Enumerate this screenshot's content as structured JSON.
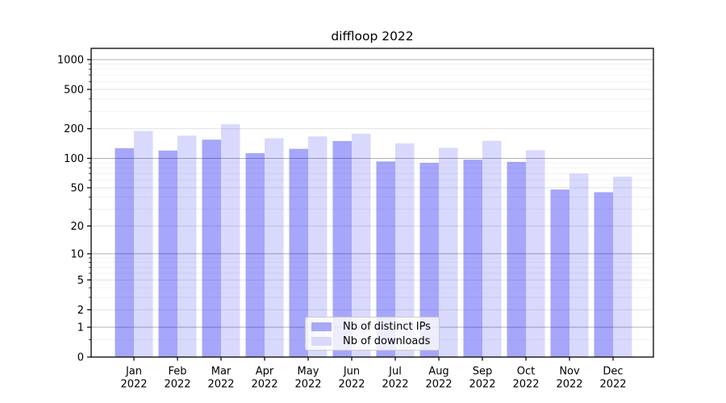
{
  "chart_data": {
    "type": "bar",
    "title": "diffloop 2022",
    "months": [
      "Jan",
      "Feb",
      "Mar",
      "Apr",
      "May",
      "Jun",
      "Jul",
      "Aug",
      "Sep",
      "Oct",
      "Nov",
      "Dec"
    ],
    "year": "2022",
    "categories": [
      "Jan 2022",
      "Feb 2022",
      "Mar 2022",
      "Apr 2022",
      "May 2022",
      "Jun 2022",
      "Jul 2022",
      "Aug 2022",
      "Sep 2022",
      "Oct 2022",
      "Nov 2022",
      "Dec 2022"
    ],
    "series": [
      {
        "name": "Nb of distinct IPs",
        "color": "#0000f0",
        "opacity": 0.35,
        "values": [
          127,
          120,
          155,
          113,
          125,
          150,
          93,
          90,
          97,
          92,
          48,
          45
        ]
      },
      {
        "name": "Nb of downloads",
        "color": "#0000f0",
        "opacity": 0.15,
        "values": [
          190,
          170,
          222,
          160,
          167,
          178,
          142,
          128,
          151,
          121,
          70,
          65
        ]
      }
    ],
    "yscale": "log1p",
    "yticks": [
      0,
      1,
      2,
      5,
      10,
      20,
      50,
      100,
      200,
      500,
      1000
    ],
    "ytick_labels": [
      "0",
      "1",
      "2",
      "5",
      "10",
      "20",
      "50",
      "100",
      "200",
      "500",
      "1000"
    ],
    "ylim": [
      0,
      1300
    ],
    "xlabel": "",
    "ylabel": "",
    "grid": true,
    "legend_position": "lower center",
    "colors": {
      "bar_ips": "#a8a8f6",
      "bar_downloads": "#d9d9fb",
      "grid_major": "#b0b0b0",
      "grid_minor": "#efefef",
      "grid_submajor": "#dedede",
      "axis": "#000000"
    }
  }
}
